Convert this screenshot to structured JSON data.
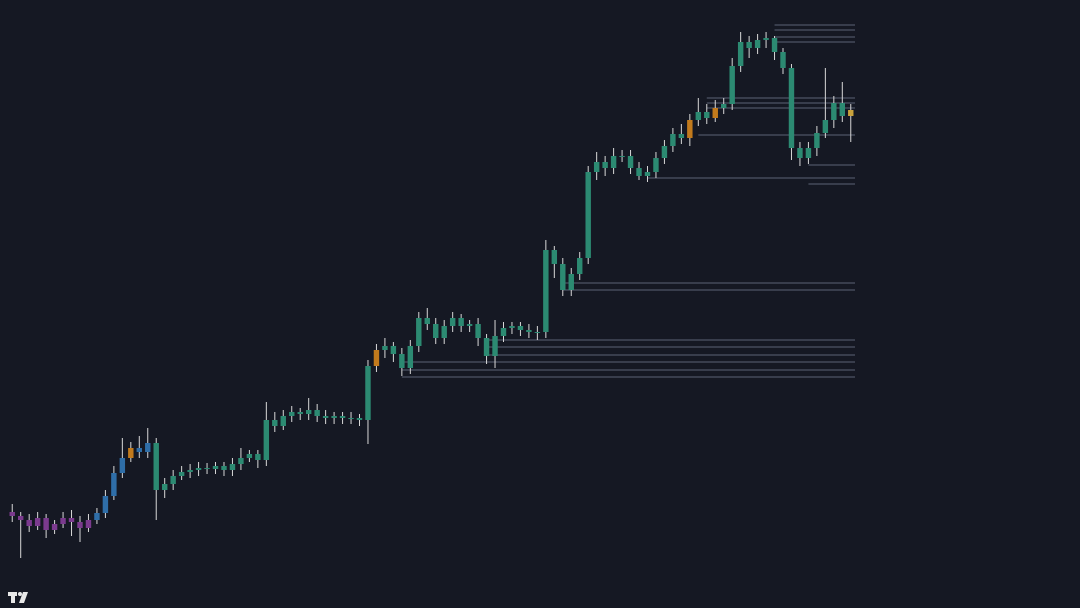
{
  "chart_data": {
    "type": "candlestick",
    "ylim": [
      0,
      608
    ],
    "open": [
      96,
      92,
      88,
      82,
      90,
      78,
      84,
      90,
      86,
      80,
      88,
      95,
      112,
      135,
      150,
      160,
      156,
      165,
      118,
      124,
      132,
      136,
      138,
      140,
      139,
      142,
      138,
      144,
      150,
      154,
      148,
      188,
      182,
      192,
      196,
      194,
      198,
      192,
      190,
      192,
      190,
      190,
      188,
      242,
      258,
      262,
      254,
      240,
      262,
      290,
      284,
      270,
      282,
      290,
      282,
      284,
      270,
      252,
      272,
      280,
      282,
      278,
      276,
      276,
      358,
      344,
      318,
      334,
      350,
      436,
      446,
      440,
      452,
      452,
      440,
      432,
      436,
      450,
      462,
      474,
      470,
      488,
      496,
      490,
      500,
      504,
      542,
      566,
      560,
      568,
      570,
      556,
      540,
      460,
      450,
      460,
      475,
      488,
      505,
      492
    ],
    "high": [
      104,
      96,
      94,
      96,
      94,
      88,
      96,
      98,
      92,
      94,
      100,
      118,
      142,
      170,
      166,
      172,
      180,
      170,
      130,
      138,
      142,
      144,
      146,
      145,
      146,
      146,
      150,
      160,
      158,
      158,
      206,
      196,
      198,
      202,
      200,
      210,
      204,
      198,
      196,
      196,
      196,
      194,
      248,
      264,
      270,
      266,
      260,
      268,
      296,
      300,
      290,
      288,
      296,
      294,
      288,
      290,
      274,
      288,
      286,
      286,
      286,
      284,
      282,
      368,
      362,
      350,
      340,
      356,
      442,
      456,
      452,
      460,
      458,
      458,
      446,
      442,
      456,
      468,
      480,
      484,
      494,
      510,
      504,
      508,
      510,
      550,
      576,
      572,
      574,
      576,
      572,
      560,
      544,
      466,
      466,
      482,
      540,
      512,
      526,
      504
    ],
    "low": [
      86,
      50,
      76,
      78,
      70,
      74,
      80,
      72,
      66,
      76,
      84,
      90,
      108,
      130,
      146,
      150,
      150,
      88,
      110,
      118,
      128,
      130,
      132,
      134,
      134,
      132,
      132,
      138,
      146,
      140,
      142,
      176,
      178,
      186,
      188,
      188,
      186,
      184,
      184,
      184,
      184,
      182,
      164,
      236,
      250,
      246,
      232,
      234,
      256,
      278,
      264,
      264,
      276,
      276,
      276,
      262,
      244,
      240,
      266,
      274,
      272,
      270,
      268,
      270,
      330,
      312,
      312,
      328,
      344,
      428,
      432,
      434,
      446,
      434,
      428,
      426,
      430,
      444,
      456,
      464,
      462,
      482,
      484,
      486,
      494,
      498,
      536,
      550,
      554,
      560,
      548,
      534,
      448,
      442,
      444,
      452,
      470,
      480,
      486,
      466
    ],
    "close": [
      92,
      88,
      82,
      90,
      78,
      84,
      90,
      86,
      80,
      88,
      95,
      112,
      135,
      150,
      160,
      156,
      165,
      118,
      124,
      132,
      136,
      138,
      140,
      139,
      142,
      138,
      144,
      150,
      154,
      148,
      188,
      182,
      192,
      196,
      194,
      198,
      192,
      190,
      192,
      190,
      190,
      188,
      242,
      258,
      262,
      254,
      240,
      262,
      290,
      284,
      270,
      282,
      290,
      282,
      284,
      270,
      252,
      272,
      280,
      282,
      278,
      276,
      276,
      358,
      344,
      318,
      334,
      350,
      436,
      446,
      440,
      452,
      452,
      440,
      432,
      436,
      450,
      462,
      474,
      470,
      488,
      496,
      490,
      500,
      504,
      542,
      566,
      560,
      568,
      570,
      556,
      540,
      460,
      450,
      460,
      475,
      488,
      505,
      492,
      498
    ],
    "candle_colors": [
      "p",
      "p",
      "p",
      "p",
      "p",
      "p",
      "p",
      "p",
      "p",
      "p",
      "b",
      "b",
      "b",
      "b",
      "o",
      "b",
      "b",
      "g",
      "g",
      "g",
      "g",
      "g",
      "g",
      "g",
      "g",
      "g",
      "g",
      "g",
      "g",
      "g",
      "g",
      "g",
      "g",
      "g",
      "g",
      "g",
      "g",
      "g",
      "g",
      "g",
      "g",
      "g",
      "g",
      "o",
      "g",
      "g",
      "g",
      "g",
      "g",
      "g",
      "g",
      "g",
      "g",
      "g",
      "g",
      "g",
      "g",
      "g",
      "g",
      "g",
      "g",
      "g",
      "g",
      "g",
      "g",
      "g",
      "g",
      "g",
      "g",
      "g",
      "g",
      "g",
      "g",
      "g",
      "g",
      "g",
      "g",
      "g",
      "g",
      "g",
      "o",
      "g",
      "g",
      "o",
      "g",
      "g",
      "g",
      "g",
      "g",
      "g",
      "g",
      "g",
      "g",
      "g",
      "g",
      "g",
      "g",
      "g",
      "g",
      "y"
    ],
    "palette": {
      "p": "#7b3a8e",
      "b": "#2f6ea8",
      "g": "#2c8a72",
      "o": "#c27a1c",
      "y": "#c9a23c"
    },
    "levels": [
      {
        "value": 583,
        "from": 90
      },
      {
        "value": 578,
        "from": 90
      },
      {
        "value": 571,
        "from": 90
      },
      {
        "value": 566,
        "from": 90
      },
      {
        "value": 510,
        "from": 82
      },
      {
        "value": 505,
        "from": 82
      },
      {
        "value": 500,
        "from": 82
      },
      {
        "value": 473,
        "from": 81
      },
      {
        "value": 443,
        "from": 94
      },
      {
        "value": 430,
        "from": 75
      },
      {
        "value": 424,
        "from": 94
      },
      {
        "value": 325,
        "from": 65
      },
      {
        "value": 318,
        "from": 65
      },
      {
        "value": 268,
        "from": 56
      },
      {
        "value": 261,
        "from": 56
      },
      {
        "value": 253,
        "from": 56
      },
      {
        "value": 246,
        "from": 46
      },
      {
        "value": 238,
        "from": 46
      },
      {
        "value": 231,
        "from": 46
      }
    ],
    "level_color": "#5b6274"
  }
}
